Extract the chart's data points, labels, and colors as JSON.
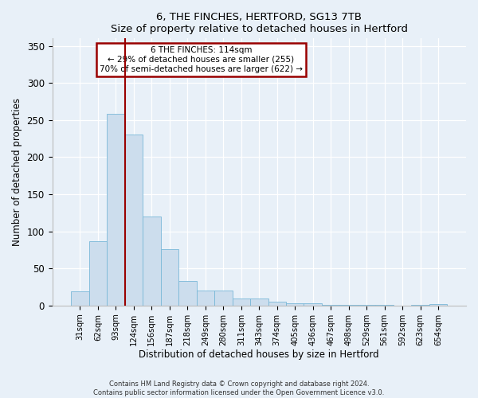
{
  "title": "6, THE FINCHES, HERTFORD, SG13 7TB",
  "subtitle": "Size of property relative to detached houses in Hertford",
  "xlabel": "Distribution of detached houses by size in Hertford",
  "ylabel": "Number of detached properties",
  "bar_labels": [
    "31sqm",
    "62sqm",
    "93sqm",
    "124sqm",
    "156sqm",
    "187sqm",
    "218sqm",
    "249sqm",
    "280sqm",
    "311sqm",
    "343sqm",
    "374sqm",
    "405sqm",
    "436sqm",
    "467sqm",
    "498sqm",
    "529sqm",
    "561sqm",
    "592sqm",
    "623sqm",
    "654sqm"
  ],
  "bar_values": [
    19,
    87,
    258,
    231,
    120,
    76,
    33,
    20,
    20,
    10,
    9,
    5,
    3,
    3,
    1,
    1,
    1,
    1,
    0,
    1,
    2
  ],
  "bar_color": "#ccdded",
  "bar_edge_color": "#7ab8d8",
  "vline_position": 2.5,
  "vline_color": "#990000",
  "annotation_line1": "6 THE FINCHES: 114sqm",
  "annotation_line2": "← 29% of detached houses are smaller (255)",
  "annotation_line3": "70% of semi-detached houses are larger (622) →",
  "annotation_box_edgecolor": "#990000",
  "ylim": [
    0,
    360
  ],
  "yticks": [
    0,
    50,
    100,
    150,
    200,
    250,
    300,
    350
  ],
  "footer_line1": "Contains HM Land Registry data © Crown copyright and database right 2024.",
  "footer_line2": "Contains public sector information licensed under the Open Government Licence v3.0.",
  "bg_color": "#e8f0f8",
  "plot_bg_color": "#e8f0f8"
}
